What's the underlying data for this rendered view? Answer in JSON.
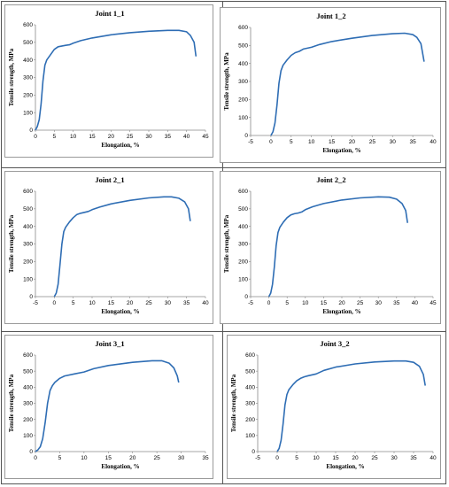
{
  "chart_data": [
    {
      "type": "line",
      "title": "Joint 1_1",
      "xlabel": "Elongation, %",
      "ylabel": "Tensile strength, MPa",
      "xlim": [
        0,
        45
      ],
      "ylim": [
        0,
        600
      ],
      "xticks": [
        0,
        5,
        10,
        15,
        20,
        25,
        30,
        35,
        40,
        45
      ],
      "yticks": [
        0,
        100,
        200,
        300,
        400,
        500,
        600
      ],
      "grid": false,
      "series": [
        {
          "color": "#2e6db4",
          "x": [
            0,
            0.5,
            1,
            1.5,
            2,
            2.5,
            3,
            4,
            5,
            6,
            8,
            9,
            10,
            12,
            15,
            20,
            25,
            30,
            35,
            38,
            40,
            41,
            42,
            42.5
          ],
          "y": [
            0,
            20,
            60,
            150,
            280,
            370,
            400,
            430,
            460,
            475,
            483,
            486,
            495,
            510,
            525,
            543,
            555,
            563,
            568,
            568,
            560,
            540,
            500,
            420
          ]
        }
      ]
    },
    {
      "type": "line",
      "title": "Joint 1_2",
      "xlabel": "Elongation, %",
      "ylabel": "Tensile strength, MPa",
      "xlim": [
        -5,
        40
      ],
      "ylim": [
        0,
        600
      ],
      "xticks": [
        -5,
        0,
        5,
        10,
        15,
        20,
        25,
        30,
        35,
        40
      ],
      "yticks": [
        0,
        100,
        200,
        300,
        400,
        500,
        600
      ],
      "grid": false,
      "series": [
        {
          "color": "#2e6db4",
          "x": [
            0,
            0.5,
            1,
            1.5,
            2,
            2.5,
            3,
            4,
            5,
            6,
            7,
            8,
            9,
            10,
            12,
            15,
            20,
            25,
            30,
            33,
            35,
            36,
            37,
            37.8
          ],
          "y": [
            0,
            20,
            70,
            170,
            290,
            360,
            390,
            420,
            445,
            460,
            467,
            480,
            485,
            490,
            505,
            522,
            540,
            555,
            565,
            568,
            560,
            545,
            510,
            410
          ]
        }
      ]
    },
    {
      "type": "line",
      "title": "Joint 2_1",
      "xlabel": "Elongation, %",
      "ylabel": "Tensile strength, MPa",
      "xlim": [
        -5,
        40
      ],
      "ylim": [
        0,
        600
      ],
      "xticks": [
        -5,
        0,
        5,
        10,
        15,
        20,
        25,
        30,
        35,
        40
      ],
      "yticks": [
        0,
        100,
        200,
        300,
        400,
        500,
        600
      ],
      "grid": false,
      "series": [
        {
          "color": "#2e6db4",
          "x": [
            0,
            0.5,
            1,
            1.5,
            2,
            2.5,
            3,
            4,
            5,
            6,
            7,
            8,
            9,
            10,
            12,
            15,
            20,
            25,
            29,
            31,
            33,
            34.5,
            35.5,
            36
          ],
          "y": [
            0,
            20,
            70,
            180,
            300,
            370,
            395,
            425,
            450,
            468,
            475,
            480,
            485,
            495,
            510,
            528,
            548,
            562,
            568,
            568,
            560,
            540,
            500,
            430
          ]
        }
      ]
    },
    {
      "type": "line",
      "title": "Joint 2_2",
      "xlabel": "Elongation, %",
      "ylabel": "Tensile strength, MPa",
      "xlim": [
        -5,
        45
      ],
      "ylim": [
        0,
        600
      ],
      "xticks": [
        -5,
        0,
        5,
        10,
        15,
        20,
        25,
        30,
        35,
        40,
        45
      ],
      "yticks": [
        0,
        100,
        200,
        300,
        400,
        500,
        600
      ],
      "grid": false,
      "series": [
        {
          "color": "#2e6db4",
          "x": [
            0,
            0.5,
            1,
            1.5,
            2,
            2.5,
            3,
            4,
            5,
            6,
            7,
            8,
            9,
            10,
            12,
            15,
            20,
            25,
            30,
            33,
            35,
            36.5,
            37.5,
            38
          ],
          "y": [
            0,
            20,
            70,
            170,
            290,
            365,
            395,
            425,
            450,
            465,
            472,
            476,
            482,
            495,
            512,
            530,
            550,
            562,
            568,
            566,
            555,
            530,
            490,
            420
          ]
        }
      ]
    },
    {
      "type": "line",
      "title": "Joint 3_1",
      "xlabel": "Elongation, %",
      "ylabel": "Tensile strength, MPa",
      "xlim": [
        0,
        35
      ],
      "ylim": [
        0,
        600
      ],
      "xticks": [
        0,
        5,
        10,
        15,
        20,
        25,
        30,
        35
      ],
      "yticks": [
        0,
        100,
        200,
        300,
        400,
        500,
        600
      ],
      "grid": false,
      "series": [
        {
          "color": "#2e6db4",
          "x": [
            0,
            0.5,
            1,
            1.5,
            2,
            2.5,
            3,
            3.5,
            4,
            5,
            6,
            8,
            10,
            12,
            15,
            20,
            24,
            26,
            27.5,
            28.5,
            29.2,
            29.5
          ],
          "y": [
            0,
            10,
            30,
            80,
            180,
            300,
            380,
            410,
            430,
            455,
            470,
            483,
            495,
            515,
            535,
            555,
            565,
            565,
            550,
            520,
            470,
            430
          ]
        }
      ]
    },
    {
      "type": "line",
      "title": "Joint 3_2",
      "xlabel": "Elongation, %",
      "ylabel": "Tensile strength, MPa",
      "xlim": [
        -5,
        40
      ],
      "ylim": [
        0,
        600
      ],
      "xticks": [
        -5,
        0,
        5,
        10,
        15,
        20,
        25,
        30,
        35,
        40
      ],
      "yticks": [
        0,
        100,
        200,
        300,
        400,
        500,
        600
      ],
      "grid": false,
      "series": [
        {
          "color": "#2e6db4",
          "x": [
            0,
            0.5,
            1,
            1.5,
            2,
            2.5,
            3,
            4,
            5,
            6,
            7,
            8,
            10,
            12,
            15,
            20,
            25,
            30,
            33,
            35,
            36.5,
            37.5,
            38
          ],
          "y": [
            0,
            20,
            70,
            170,
            290,
            355,
            385,
            415,
            440,
            455,
            465,
            472,
            483,
            505,
            525,
            545,
            557,
            563,
            563,
            555,
            530,
            480,
            410
          ]
        }
      ]
    }
  ]
}
